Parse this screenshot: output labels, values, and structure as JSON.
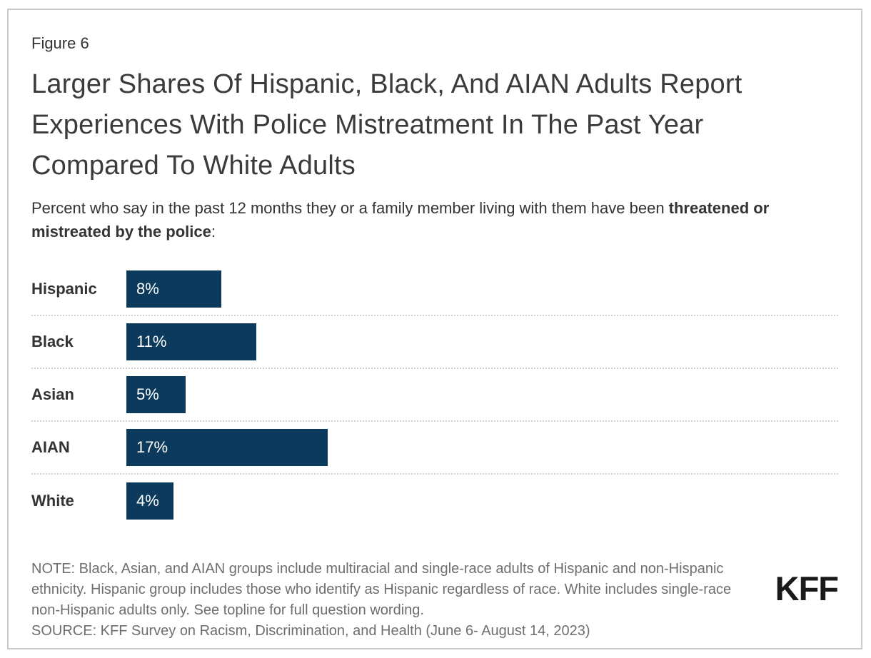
{
  "figure_label": "Figure 6",
  "title": "Larger Shares Of Hispanic, Black, And AIAN Adults Report Experiences With Police Mistreatment In The Past Year Compared To White Adults",
  "subtitle": {
    "lead": "Percent who say in the past 12 months they or a family member living with them have been ",
    "bold": "threatened or mistreated by the police",
    "tail": ":"
  },
  "chart_data": {
    "type": "bar",
    "orientation": "horizontal",
    "categories": [
      "Hispanic",
      "Black",
      "Asian",
      "AIAN",
      "White"
    ],
    "values": [
      8,
      11,
      5,
      17,
      4
    ],
    "value_labels": [
      "8%",
      "11%",
      "5%",
      "17%",
      "4%"
    ],
    "xlim": [
      0,
      60
    ],
    "bar_color": "#0c3a5d",
    "value_label_color": "#ffffff",
    "category_label_color": "#333333",
    "row_separator": "dotted",
    "row_separator_color": "#d2d2d2",
    "legend": "none",
    "axis_ticks": "none"
  },
  "note": "NOTE: Black, Asian, and AIAN groups include multiracial and single-race adults of Hispanic and non-Hispanic ethnicity. Hispanic group includes those who identify as Hispanic regardless of race. White includes single-race non-Hispanic adults only. See topline for full question wording.",
  "source": "SOURCE: KFF Survey on Racism, Discrimination, and Health (June 6- August 14, 2023)",
  "logo_text": "KFF"
}
